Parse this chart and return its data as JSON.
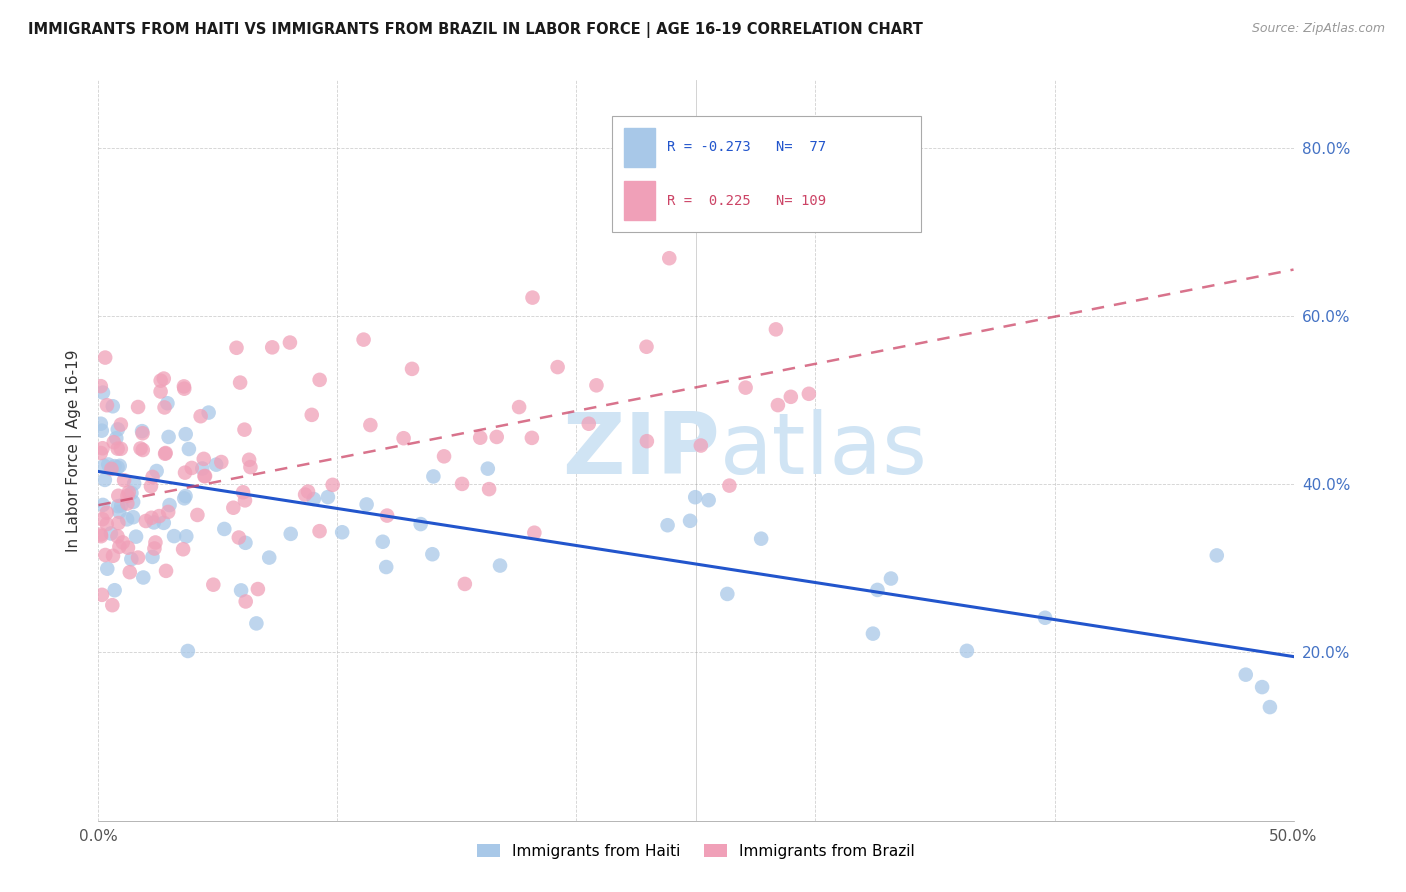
{
  "title": "IMMIGRANTS FROM HAITI VS IMMIGRANTS FROM BRAZIL IN LABOR FORCE | AGE 16-19 CORRELATION CHART",
  "source": "Source: ZipAtlas.com",
  "ylabel": "In Labor Force | Age 16-19",
  "xlim": [
    0.0,
    0.5
  ],
  "ylim": [
    0.0,
    0.88
  ],
  "xtick_vals": [
    0.0,
    0.1,
    0.2,
    0.3,
    0.4,
    0.5
  ],
  "ytick_vals": [
    0.2,
    0.4,
    0.6,
    0.8
  ],
  "xtick_labels": [
    "0.0%",
    "",
    "",
    "",
    "",
    "50.0%"
  ],
  "ytick_labels": [
    "20.0%",
    "40.0%",
    "60.0%",
    "80.0%"
  ],
  "haiti_color": "#a8c8e8",
  "brazil_color": "#f0a0b8",
  "haiti_line_color": "#2255cc",
  "brazil_line_color": "#cc4466",
  "watermark_color": "#d0e4f4",
  "legend_haiti_label": "Immigrants from Haiti",
  "legend_brazil_label": "Immigrants from Brazil",
  "haiti_R": -0.273,
  "haiti_N": 77,
  "brazil_R": 0.225,
  "brazil_N": 109,
  "haiti_line_x0": 0.0,
  "haiti_line_y0": 0.415,
  "haiti_line_x1": 0.5,
  "haiti_line_y1": 0.195,
  "brazil_line_x0": 0.0,
  "brazil_line_y0": 0.375,
  "brazil_line_x1": 0.5,
  "brazil_line_y1": 0.655
}
